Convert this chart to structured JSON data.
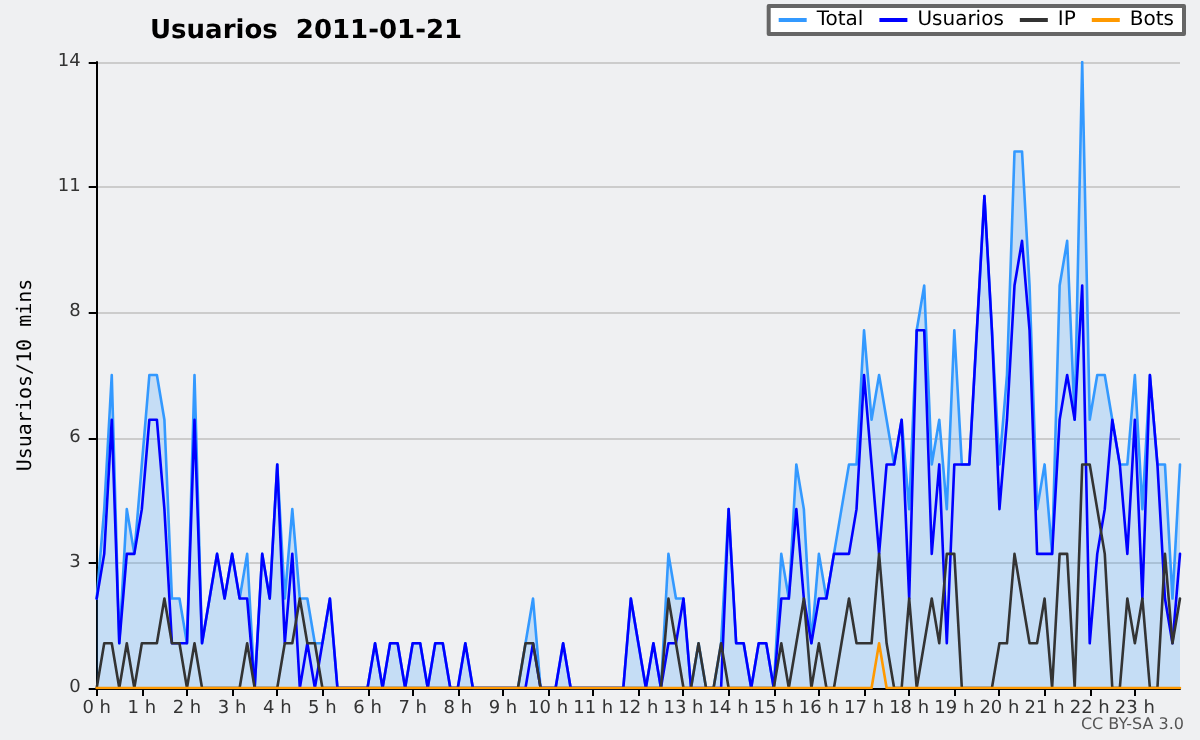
{
  "chart_data": {
    "type": "line",
    "title": "Usuarios  2011-01-21",
    "ylabel": "Usuarios/10 mins",
    "annotations": [
      "CC BY-SA 3.0"
    ],
    "x": [
      0,
      0.1667,
      0.3333,
      0.5,
      0.6667,
      0.8333,
      1,
      1.1667,
      1.3333,
      1.5,
      1.6667,
      1.8333,
      2,
      2.1667,
      2.3333,
      2.5,
      2.6667,
      2.8333,
      3,
      3.1667,
      3.3333,
      3.5,
      3.6667,
      3.8333,
      4,
      4.1667,
      4.3333,
      4.5,
      4.6667,
      4.8333,
      5,
      5.1667,
      5.3333,
      5.5,
      5.6667,
      5.8333,
      6,
      6.1667,
      6.3333,
      6.5,
      6.6667,
      6.8333,
      7,
      7.1667,
      7.3333,
      7.5,
      7.6667,
      7.8333,
      8,
      8.1667,
      8.3333,
      8.5,
      8.6667,
      8.8333,
      9,
      9.1667,
      9.3333,
      9.5,
      9.6667,
      9.8333,
      10,
      10.1667,
      10.3333,
      10.5,
      10.6667,
      10.8333,
      11,
      11.1667,
      11.3333,
      11.5,
      11.6667,
      11.8333,
      12,
      12.1667,
      12.3333,
      12.5,
      12.6667,
      12.8333,
      13,
      13.1667,
      13.3333,
      13.5,
      13.6667,
      13.8333,
      14,
      14.1667,
      14.3333,
      14.5,
      14.6667,
      14.8333,
      15,
      15.1667,
      15.3333,
      15.5,
      15.6667,
      15.8333,
      16,
      16.1667,
      16.3333,
      16.5,
      16.6667,
      16.8333,
      17,
      17.1667,
      17.3333,
      17.5,
      17.6667,
      17.8333,
      18,
      18.1667,
      18.3333,
      18.5,
      18.6667,
      18.8333,
      19,
      19.1667,
      19.3333,
      19.5,
      19.6667,
      19.8333,
      20,
      20.1667,
      20.3333,
      20.5,
      20.6667,
      20.8333,
      21,
      21.1667,
      21.3333,
      21.5,
      21.6667,
      21.8333,
      22,
      22.1667,
      22.3333,
      22.5,
      22.6667,
      22.8333,
      23,
      23.1667,
      23.3333,
      23.5,
      23.6667,
      23.8333,
      24
    ],
    "series": [
      {
        "name": "Total",
        "type": "area",
        "color": "#3399ff",
        "values": [
          2,
          4,
          7,
          1,
          4,
          3,
          5,
          7,
          7,
          6,
          2,
          2,
          1,
          7,
          1,
          2,
          3,
          2,
          3,
          2,
          3,
          0,
          3,
          2,
          5,
          2,
          4,
          2,
          2,
          1,
          1,
          2,
          0,
          0,
          0,
          0,
          0,
          1,
          0,
          1,
          1,
          0,
          1,
          1,
          0,
          1,
          1,
          0,
          0,
          1,
          0,
          0,
          0,
          0,
          0,
          0,
          0,
          1,
          2,
          0,
          0,
          0,
          1,
          0,
          0,
          0,
          0,
          0,
          0,
          0,
          0,
          2,
          1,
          0,
          1,
          0,
          3,
          2,
          2,
          0,
          1,
          0,
          0,
          1,
          4,
          1,
          1,
          0,
          1,
          1,
          0,
          3,
          2,
          5,
          4,
          1,
          3,
          2,
          3,
          4,
          5,
          5,
          8,
          6,
          7,
          6,
          5,
          6,
          4,
          8,
          9,
          5,
          6,
          4,
          8,
          5,
          5,
          8,
          11,
          8,
          5,
          7,
          12,
          12,
          9,
          4,
          5,
          3,
          9,
          10,
          6,
          14,
          6,
          7,
          7,
          6,
          5,
          5,
          7,
          4,
          7,
          5,
          5,
          2,
          5
        ]
      },
      {
        "name": "Usuarios",
        "type": "line",
        "color": "#0000ff",
        "values": [
          2,
          3,
          6,
          1,
          3,
          3,
          4,
          6,
          6,
          4,
          1,
          1,
          1,
          6,
          1,
          2,
          3,
          2,
          3,
          2,
          2,
          0,
          3,
          2,
          5,
          1,
          3,
          0,
          1,
          0,
          1,
          2,
          0,
          0,
          0,
          0,
          0,
          1,
          0,
          1,
          1,
          0,
          1,
          1,
          0,
          1,
          1,
          0,
          0,
          1,
          0,
          0,
          0,
          0,
          0,
          0,
          0,
          0,
          1,
          0,
          0,
          0,
          1,
          0,
          0,
          0,
          0,
          0,
          0,
          0,
          0,
          2,
          1,
          0,
          1,
          0,
          1,
          1,
          2,
          0,
          0,
          0,
          0,
          0,
          4,
          1,
          1,
          0,
          1,
          1,
          0,
          2,
          2,
          4,
          2,
          1,
          2,
          2,
          3,
          3,
          3,
          4,
          7,
          5,
          3,
          5,
          5,
          6,
          2,
          8,
          8,
          3,
          5,
          1,
          5,
          5,
          5,
          8,
          11,
          8,
          4,
          6,
          9,
          10,
          8,
          3,
          3,
          3,
          6,
          7,
          6,
          9,
          1,
          3,
          4,
          6,
          5,
          3,
          6,
          2,
          7,
          5,
          2,
          1,
          3
        ]
      },
      {
        "name": "IP",
        "type": "line",
        "color": "#333333",
        "values": [
          0,
          1,
          1,
          0,
          1,
          0,
          1,
          1,
          1,
          2,
          1,
          1,
          0,
          1,
          0,
          0,
          0,
          0,
          0,
          0,
          1,
          0,
          0,
          0,
          0,
          1,
          1,
          2,
          1,
          1,
          0,
          0,
          0,
          0,
          0,
          0,
          0,
          0,
          0,
          0,
          0,
          0,
          0,
          0,
          0,
          0,
          0,
          0,
          0,
          0,
          0,
          0,
          0,
          0,
          0,
          0,
          0,
          1,
          1,
          0,
          0,
          0,
          0,
          0,
          0,
          0,
          0,
          0,
          0,
          0,
          0,
          0,
          0,
          0,
          0,
          0,
          2,
          1,
          0,
          0,
          1,
          0,
          0,
          1,
          0,
          0,
          0,
          0,
          0,
          0,
          0,
          1,
          0,
          1,
          2,
          0,
          1,
          0,
          0,
          1,
          2,
          1,
          1,
          1,
          3,
          1,
          0,
          0,
          2,
          0,
          1,
          2,
          1,
          3,
          3,
          0,
          0,
          0,
          0,
          0,
          1,
          1,
          3,
          2,
          1,
          1,
          2,
          0,
          3,
          3,
          0,
          5,
          5,
          4,
          3,
          0,
          0,
          2,
          1,
          2,
          0,
          0,
          3,
          1,
          2
        ]
      },
      {
        "name": "Bots",
        "type": "line",
        "color": "#ff9900",
        "values": [
          0,
          0,
          0,
          0,
          0,
          0,
          0,
          0,
          0,
          0,
          0,
          0,
          0,
          0,
          0,
          0,
          0,
          0,
          0,
          0,
          0,
          0,
          0,
          0,
          0,
          0,
          0,
          0,
          0,
          0,
          0,
          0,
          0,
          0,
          0,
          0,
          0,
          0,
          0,
          0,
          0,
          0,
          0,
          0,
          0,
          0,
          0,
          0,
          0,
          0,
          0,
          0,
          0,
          0,
          0,
          0,
          0,
          0,
          0,
          0,
          0,
          0,
          0,
          0,
          0,
          0,
          0,
          0,
          0,
          0,
          0,
          0,
          0,
          0,
          0,
          0,
          0,
          0,
          0,
          0,
          0,
          0,
          0,
          0,
          0,
          0,
          0,
          0,
          0,
          0,
          0,
          0,
          0,
          0,
          0,
          0,
          0,
          0,
          0,
          0,
          0,
          0,
          0,
          0,
          1,
          0,
          0,
          0,
          0,
          0,
          0,
          0,
          0,
          0,
          0,
          0,
          0,
          0,
          0,
          0,
          0,
          0,
          0,
          0,
          0,
          0,
          0,
          0,
          0,
          0,
          0,
          0,
          0,
          0,
          0,
          0,
          0,
          0,
          0,
          0,
          0,
          0,
          0,
          0,
          0
        ]
      }
    ],
    "xlim": [
      0,
      24
    ],
    "xticks": [
      {
        "value": 0,
        "label": "0 h"
      },
      {
        "value": 1,
        "label": "1 h"
      },
      {
        "value": 2,
        "label": "2 h"
      },
      {
        "value": 3,
        "label": "3 h"
      },
      {
        "value": 4,
        "label": "4 h"
      },
      {
        "value": 5,
        "label": "5 h"
      },
      {
        "value": 6,
        "label": "6 h"
      },
      {
        "value": 7,
        "label": "7 h"
      },
      {
        "value": 8,
        "label": "8 h"
      },
      {
        "value": 9,
        "label": "9 h"
      },
      {
        "value": 10,
        "label": "10 h"
      },
      {
        "value": 11,
        "label": "11 h"
      },
      {
        "value": 12,
        "label": "12 h"
      },
      {
        "value": 13,
        "label": "13 h"
      },
      {
        "value": 14,
        "label": "14 h"
      },
      {
        "value": 15,
        "label": "15 h"
      },
      {
        "value": 16,
        "label": "16 h"
      },
      {
        "value": 17,
        "label": "17 h"
      },
      {
        "value": 18,
        "label": "18 h"
      },
      {
        "value": 19,
        "label": "19 h"
      },
      {
        "value": 20,
        "label": "20 h"
      },
      {
        "value": 21,
        "label": "21 h"
      },
      {
        "value": 22,
        "label": "22 h"
      },
      {
        "value": 23,
        "label": "23 h"
      }
    ],
    "ylim": [
      0,
      14
    ],
    "yticks": [
      0,
      {
        "value": 2.8,
        "label": "3"
      },
      {
        "value": 5.6,
        "label": "6"
      },
      {
        "value": 8.4,
        "label": "8"
      },
      {
        "value": 11.2,
        "label": "11"
      },
      14
    ],
    "grid": "y",
    "legend": "top right",
    "marker": "none",
    "line_style": "solid"
  }
}
